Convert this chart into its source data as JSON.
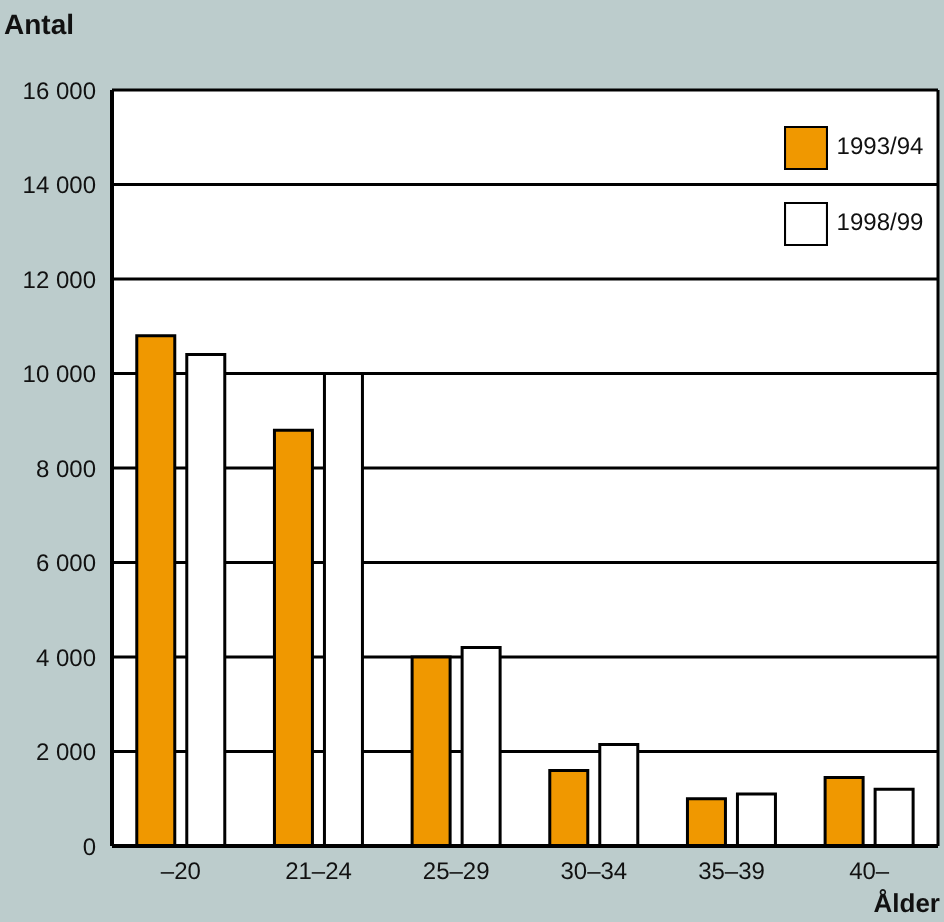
{
  "chart_data": {
    "type": "bar",
    "annotations": [
      "Antal"
    ],
    "xlabel": "Ålder",
    "categories": [
      "–20",
      "21–24",
      "25–29",
      "30–34",
      "35–39",
      "40–"
    ],
    "series": [
      {
        "name": "1993/94",
        "color": "#f09800",
        "values": [
          10800,
          8800,
          4000,
          1600,
          1000,
          1450
        ]
      },
      {
        "name": "1998/99",
        "color": "#ffffff",
        "values": [
          10400,
          10000,
          4200,
          2150,
          1100,
          1200
        ]
      }
    ],
    "ylim": [
      0,
      16000
    ],
    "yticks": [
      0,
      {
        "value": 2000,
        "label": "2 000"
      },
      {
        "value": 4000,
        "label": "4 000"
      },
      {
        "value": 6000,
        "label": "6 000"
      },
      {
        "value": 8000,
        "label": "8 000"
      },
      {
        "value": 10000,
        "label": "10 000"
      },
      {
        "value": 12000,
        "label": "12 000"
      },
      {
        "value": 14000,
        "label": "14 000"
      },
      {
        "value": 16000,
        "label": "16 000"
      }
    ],
    "grid": "y",
    "legend": "top right"
  }
}
